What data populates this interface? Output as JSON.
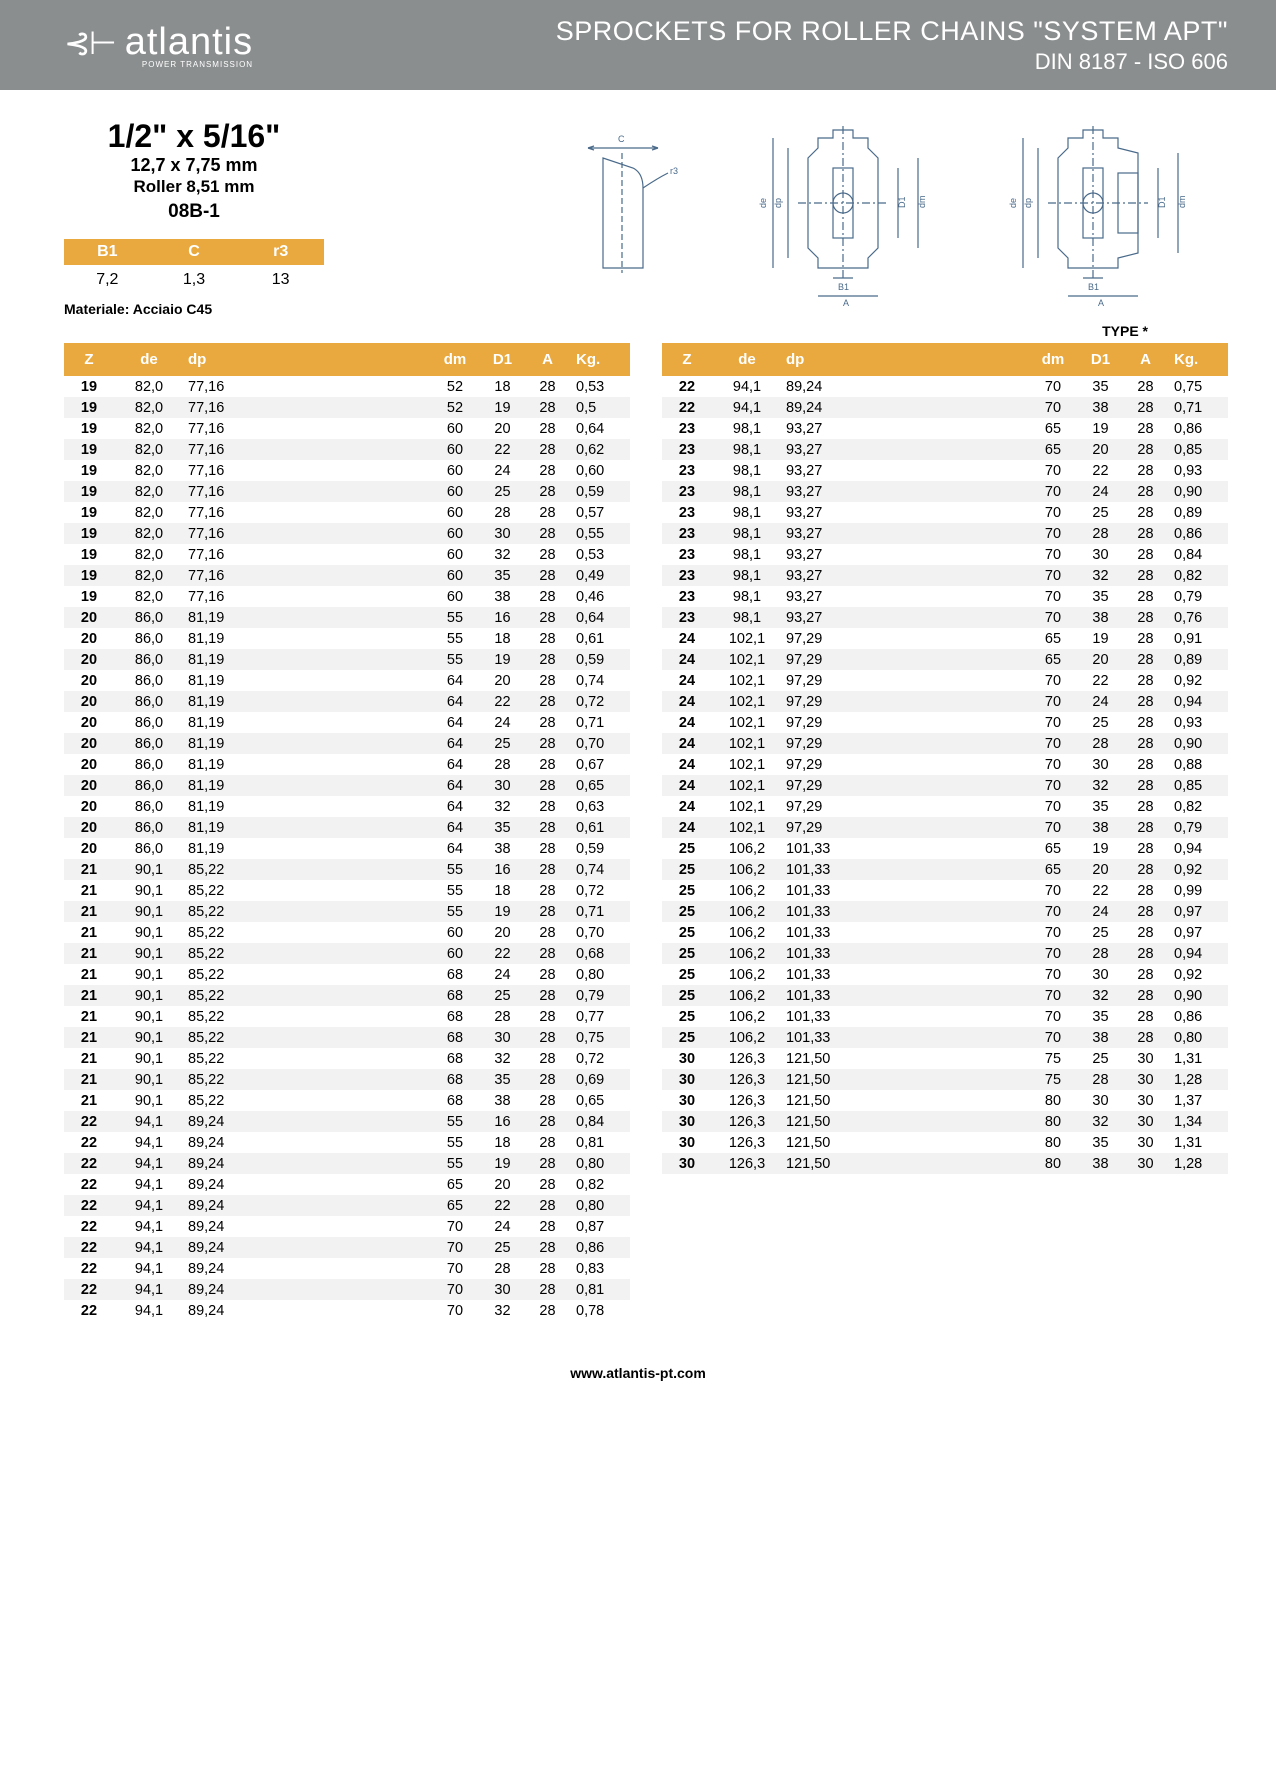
{
  "header": {
    "logo_mark": "⊰⊢",
    "logo_text": "atlantis",
    "logo_sub": "POWER TRANSMISSION",
    "title_line1": "SPROCKETS FOR ROLLER CHAINS \"SYSTEM APT\"",
    "title_line2": "DIN 8187 - ISO 606"
  },
  "spec": {
    "size": "1/2\" x 5/16\"",
    "mm": "12,7 x 7,75 mm",
    "roller": "Roller 8,51 mm",
    "code": "08B-1"
  },
  "mini": {
    "h1": "B1",
    "h2": "C",
    "h3": "r3",
    "v1": "7,2",
    "v2": "1,3",
    "v3": "13"
  },
  "material": "Materiale: Acciaio C45",
  "type_label": "TYPE *",
  "table_headers": {
    "z": "Z",
    "de": "de",
    "dp": "dp",
    "dm": "dm",
    "d1": "D1",
    "a": "A",
    "kg": "Kg."
  },
  "left_rows": [
    [
      "19",
      "82,0",
      "77,16",
      "52",
      "18",
      "28",
      "0,53"
    ],
    [
      "19",
      "82,0",
      "77,16",
      "52",
      "19",
      "28",
      "0,5"
    ],
    [
      "19",
      "82,0",
      "77,16",
      "60",
      "20",
      "28",
      "0,64"
    ],
    [
      "19",
      "82,0",
      "77,16",
      "60",
      "22",
      "28",
      "0,62"
    ],
    [
      "19",
      "82,0",
      "77,16",
      "60",
      "24",
      "28",
      "0,60"
    ],
    [
      "19",
      "82,0",
      "77,16",
      "60",
      "25",
      "28",
      "0,59"
    ],
    [
      "19",
      "82,0",
      "77,16",
      "60",
      "28",
      "28",
      "0,57"
    ],
    [
      "19",
      "82,0",
      "77,16",
      "60",
      "30",
      "28",
      "0,55"
    ],
    [
      "19",
      "82,0",
      "77,16",
      "60",
      "32",
      "28",
      "0,53"
    ],
    [
      "19",
      "82,0",
      "77,16",
      "60",
      "35",
      "28",
      "0,49"
    ],
    [
      "19",
      "82,0",
      "77,16",
      "60",
      "38",
      "28",
      "0,46"
    ],
    [
      "20",
      "86,0",
      "81,19",
      "55",
      "16",
      "28",
      "0,64"
    ],
    [
      "20",
      "86,0",
      "81,19",
      "55",
      "18",
      "28",
      "0,61"
    ],
    [
      "20",
      "86,0",
      "81,19",
      "55",
      "19",
      "28",
      "0,59"
    ],
    [
      "20",
      "86,0",
      "81,19",
      "64",
      "20",
      "28",
      "0,74"
    ],
    [
      "20",
      "86,0",
      "81,19",
      "64",
      "22",
      "28",
      "0,72"
    ],
    [
      "20",
      "86,0",
      "81,19",
      "64",
      "24",
      "28",
      "0,71"
    ],
    [
      "20",
      "86,0",
      "81,19",
      "64",
      "25",
      "28",
      "0,70"
    ],
    [
      "20",
      "86,0",
      "81,19",
      "64",
      "28",
      "28",
      "0,67"
    ],
    [
      "20",
      "86,0",
      "81,19",
      "64",
      "30",
      "28",
      "0,65"
    ],
    [
      "20",
      "86,0",
      "81,19",
      "64",
      "32",
      "28",
      "0,63"
    ],
    [
      "20",
      "86,0",
      "81,19",
      "64",
      "35",
      "28",
      "0,61"
    ],
    [
      "20",
      "86,0",
      "81,19",
      "64",
      "38",
      "28",
      "0,59"
    ],
    [
      "21",
      "90,1",
      "85,22",
      "55",
      "16",
      "28",
      "0,74"
    ],
    [
      "21",
      "90,1",
      "85,22",
      "55",
      "18",
      "28",
      "0,72"
    ],
    [
      "21",
      "90,1",
      "85,22",
      "55",
      "19",
      "28",
      "0,71"
    ],
    [
      "21",
      "90,1",
      "85,22",
      "60",
      "20",
      "28",
      "0,70"
    ],
    [
      "21",
      "90,1",
      "85,22",
      "60",
      "22",
      "28",
      "0,68"
    ],
    [
      "21",
      "90,1",
      "85,22",
      "68",
      "24",
      "28",
      "0,80"
    ],
    [
      "21",
      "90,1",
      "85,22",
      "68",
      "25",
      "28",
      "0,79"
    ],
    [
      "21",
      "90,1",
      "85,22",
      "68",
      "28",
      "28",
      "0,77"
    ],
    [
      "21",
      "90,1",
      "85,22",
      "68",
      "30",
      "28",
      "0,75"
    ],
    [
      "21",
      "90,1",
      "85,22",
      "68",
      "32",
      "28",
      "0,72"
    ],
    [
      "21",
      "90,1",
      "85,22",
      "68",
      "35",
      "28",
      "0,69"
    ],
    [
      "21",
      "90,1",
      "85,22",
      "68",
      "38",
      "28",
      "0,65"
    ],
    [
      "22",
      "94,1",
      "89,24",
      "55",
      "16",
      "28",
      "0,84"
    ],
    [
      "22",
      "94,1",
      "89,24",
      "55",
      "18",
      "28",
      "0,81"
    ],
    [
      "22",
      "94,1",
      "89,24",
      "55",
      "19",
      "28",
      "0,80"
    ],
    [
      "22",
      "94,1",
      "89,24",
      "65",
      "20",
      "28",
      "0,82"
    ],
    [
      "22",
      "94,1",
      "89,24",
      "65",
      "22",
      "28",
      "0,80"
    ],
    [
      "22",
      "94,1",
      "89,24",
      "70",
      "24",
      "28",
      "0,87"
    ],
    [
      "22",
      "94,1",
      "89,24",
      "70",
      "25",
      "28",
      "0,86"
    ],
    [
      "22",
      "94,1",
      "89,24",
      "70",
      "28",
      "28",
      "0,83"
    ],
    [
      "22",
      "94,1",
      "89,24",
      "70",
      "30",
      "28",
      "0,81"
    ],
    [
      "22",
      "94,1",
      "89,24",
      "70",
      "32",
      "28",
      "0,78"
    ]
  ],
  "right_rows": [
    [
      "22",
      "94,1",
      "89,24",
      "70",
      "35",
      "28",
      "0,75"
    ],
    [
      "22",
      "94,1",
      "89,24",
      "70",
      "38",
      "28",
      "0,71"
    ],
    [
      "23",
      "98,1",
      "93,27",
      "65",
      "19",
      "28",
      "0,86"
    ],
    [
      "23",
      "98,1",
      "93,27",
      "65",
      "20",
      "28",
      "0,85"
    ],
    [
      "23",
      "98,1",
      "93,27",
      "70",
      "22",
      "28",
      "0,93"
    ],
    [
      "23",
      "98,1",
      "93,27",
      "70",
      "24",
      "28",
      "0,90"
    ],
    [
      "23",
      "98,1",
      "93,27",
      "70",
      "25",
      "28",
      "0,89"
    ],
    [
      "23",
      "98,1",
      "93,27",
      "70",
      "28",
      "28",
      "0,86"
    ],
    [
      "23",
      "98,1",
      "93,27",
      "70",
      "30",
      "28",
      "0,84"
    ],
    [
      "23",
      "98,1",
      "93,27",
      "70",
      "32",
      "28",
      "0,82"
    ],
    [
      "23",
      "98,1",
      "93,27",
      "70",
      "35",
      "28",
      "0,79"
    ],
    [
      "23",
      "98,1",
      "93,27",
      "70",
      "38",
      "28",
      "0,76"
    ],
    [
      "24",
      "102,1",
      "97,29",
      "65",
      "19",
      "28",
      "0,91"
    ],
    [
      "24",
      "102,1",
      "97,29",
      "65",
      "20",
      "28",
      "0,89"
    ],
    [
      "24",
      "102,1",
      "97,29",
      "70",
      "22",
      "28",
      "0,92"
    ],
    [
      "24",
      "102,1",
      "97,29",
      "70",
      "24",
      "28",
      "0,94"
    ],
    [
      "24",
      "102,1",
      "97,29",
      "70",
      "25",
      "28",
      "0,93"
    ],
    [
      "24",
      "102,1",
      "97,29",
      "70",
      "28",
      "28",
      "0,90"
    ],
    [
      "24",
      "102,1",
      "97,29",
      "70",
      "30",
      "28",
      "0,88"
    ],
    [
      "24",
      "102,1",
      "97,29",
      "70",
      "32",
      "28",
      "0,85"
    ],
    [
      "24",
      "102,1",
      "97,29",
      "70",
      "35",
      "28",
      "0,82"
    ],
    [
      "24",
      "102,1",
      "97,29",
      "70",
      "38",
      "28",
      "0,79"
    ],
    [
      "25",
      "106,2",
      "101,33",
      "65",
      "19",
      "28",
      "0,94"
    ],
    [
      "25",
      "106,2",
      "101,33",
      "65",
      "20",
      "28",
      "0,92"
    ],
    [
      "25",
      "106,2",
      "101,33",
      "70",
      "22",
      "28",
      "0,99"
    ],
    [
      "25",
      "106,2",
      "101,33",
      "70",
      "24",
      "28",
      "0,97"
    ],
    [
      "25",
      "106,2",
      "101,33",
      "70",
      "25",
      "28",
      "0,97"
    ],
    [
      "25",
      "106,2",
      "101,33",
      "70",
      "28",
      "28",
      "0,94"
    ],
    [
      "25",
      "106,2",
      "101,33",
      "70",
      "30",
      "28",
      "0,92"
    ],
    [
      "25",
      "106,2",
      "101,33",
      "70",
      "32",
      "28",
      "0,90"
    ],
    [
      "25",
      "106,2",
      "101,33",
      "70",
      "35",
      "28",
      "0,86"
    ],
    [
      "25",
      "106,2",
      "101,33",
      "70",
      "38",
      "28",
      "0,80"
    ],
    [
      "30",
      "126,3",
      "121,50",
      "75",
      "25",
      "30",
      "1,31"
    ],
    [
      "30",
      "126,3",
      "121,50",
      "75",
      "28",
      "30",
      "1,28"
    ],
    [
      "30",
      "126,3",
      "121,50",
      "80",
      "30",
      "30",
      "1,37"
    ],
    [
      "30",
      "126,3",
      "121,50",
      "80",
      "32",
      "30",
      "1,34"
    ],
    [
      "30",
      "126,3",
      "121,50",
      "80",
      "35",
      "30",
      "1,31"
    ],
    [
      "30",
      "126,3",
      "121,50",
      "80",
      "38",
      "30",
      "1,28"
    ]
  ],
  "footer": "www.atlantis-pt.com",
  "colors": {
    "header_bg": "#8b8e8f",
    "accent": "#e9a93f",
    "row_alt": "#f2f2f2",
    "diagram": "#4a6a8a"
  }
}
